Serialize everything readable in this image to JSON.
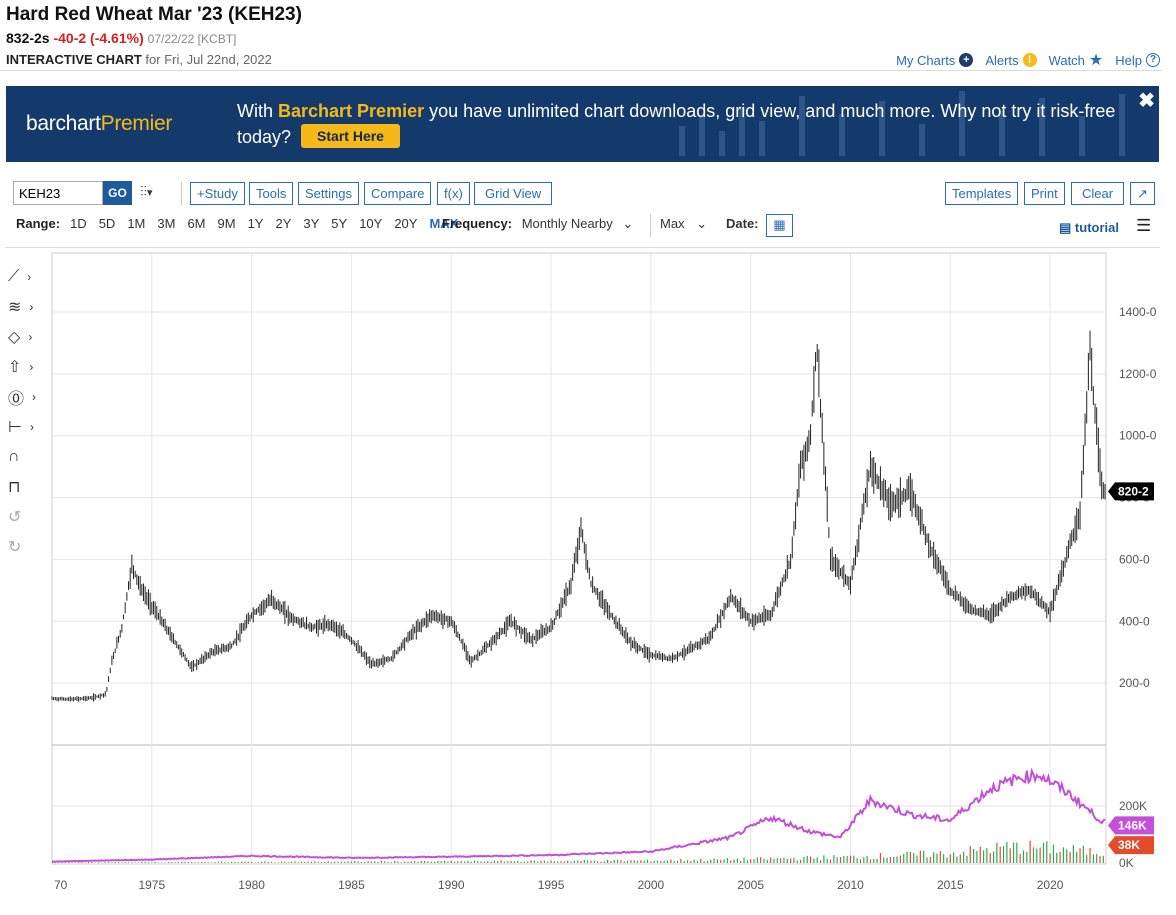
{
  "header": {
    "title": "Hard Red Wheat Mar '23 (KEH23)",
    "last": "832-2s",
    "change": "-40-2 (-4.61%)",
    "meta": "07/22/22 [KCBT]",
    "sub_bold": "INTERACTIVE CHART",
    "sub_rest": "for Fri, Jul 22nd, 2022"
  },
  "links": {
    "my_charts": "My Charts",
    "alerts": "Alerts",
    "watch": "Watch",
    "help": "Help"
  },
  "banner": {
    "brand_a": "barchart",
    "brand_b": "Premier",
    "text_a": "With ",
    "text_hl": "Barchart Premier",
    "text_b": " you have unlimited chart downloads, grid view, and much more. Why not try it risk-free today?",
    "cta": "Start Here",
    "close": "✖"
  },
  "toolbar": {
    "symbol": "KEH23",
    "go": "GO",
    "study": "+Study",
    "tools": "Tools",
    "settings": "Settings",
    "compare": "Compare",
    "fx": "f(x)",
    "grid": "Grid View",
    "templates": "Templates",
    "print": "Print",
    "clear": "Clear"
  },
  "range": {
    "label": "Range:",
    "options": [
      "1D",
      "5D",
      "1M",
      "3M",
      "6M",
      "9M",
      "1Y",
      "2Y",
      "3Y",
      "5Y",
      "10Y",
      "20Y",
      "MAX"
    ],
    "active": "MAX",
    "freq_label": "Frequency:",
    "freq_value": "Monthly Nearby",
    "agg_value": "Max",
    "date_label": "Date:",
    "tutorial": "tutorial"
  },
  "chart_data": {
    "type": "line",
    "price_axis": {
      "ticks": [
        "1400-0",
        "1200-0",
        "1000-0",
        "800-0",
        "600-0",
        "400-0",
        "200-0"
      ],
      "values": [
        1400,
        1200,
        1000,
        800,
        600,
        400,
        200
      ],
      "last_label": "820-2",
      "last_value": 820
    },
    "x_axis": {
      "ticks": [
        "70",
        "1975",
        "1980",
        "1985",
        "1990",
        "1995",
        "2000",
        "2005",
        "2010",
        "2015",
        "2020"
      ]
    },
    "price_series": {
      "name": "",
      "x": [
        1970,
        1971,
        1972,
        1972.7,
        1973,
        1973.5,
        1974,
        1974.5,
        1975,
        1976,
        1977,
        1978,
        1979,
        1980,
        1981,
        1982,
        1983,
        1984,
        1985,
        1986,
        1987,
        1988,
        1989,
        1990,
        1991,
        1992,
        1993,
        1994,
        1995,
        1996,
        1996.5,
        1997,
        1998,
        1999,
        2000,
        2001,
        2002,
        2003,
        2004,
        2005,
        2006,
        2007,
        2007.5,
        2008,
        2008.3,
        2009,
        2010,
        2011,
        2012,
        2013,
        2014,
        2015,
        2016,
        2017,
        2018,
        2019,
        2020,
        2021,
        2021.5,
        2022,
        2022.2,
        2022.6
      ],
      "y": [
        150,
        148,
        152,
        165,
        270,
        380,
        580,
        500,
        450,
        350,
        250,
        300,
        320,
        420,
        470,
        410,
        380,
        390,
        340,
        260,
        280,
        360,
        420,
        400,
        270,
        330,
        400,
        340,
        380,
        520,
        700,
        520,
        420,
        330,
        290,
        280,
        310,
        350,
        480,
        400,
        420,
        600,
        900,
        1000,
        1300,
        600,
        520,
        900,
        780,
        820,
        640,
        500,
        440,
        420,
        480,
        500,
        430,
        650,
        750,
        1280,
        1100,
        820
      ]
    },
    "volume_axis": {
      "ticks": [
        "200K",
        "0K"
      ],
      "values": [
        200000,
        0
      ]
    },
    "open_interest": {
      "name": "",
      "last_label": "146K",
      "last_value": 146000,
      "x": [
        1970,
        1975,
        1980,
        1985,
        1990,
        1995,
        2000,
        2004,
        2006,
        2008,
        2009.5,
        2011,
        2013,
        2015,
        2017,
        2018.5,
        2019.5,
        2021,
        2022.6
      ],
      "y": [
        5000,
        12000,
        25000,
        18000,
        22000,
        28000,
        40000,
        90000,
        160000,
        110000,
        90000,
        220000,
        170000,
        150000,
        260000,
        300000,
        310000,
        240000,
        146000
      ]
    },
    "volume": {
      "last_label": "38K",
      "last_value": 38000,
      "x": [
        1970,
        1980,
        1990,
        2000,
        2005,
        2010,
        2015,
        2018,
        2020,
        2022.6
      ],
      "y": [
        2000,
        4000,
        6000,
        9000,
        14000,
        22000,
        35000,
        60000,
        55000,
        38000
      ]
    },
    "colors": {
      "price": "#222222",
      "oi": "#c44fd8",
      "volume_up": "#2fa84f",
      "volume_down": "#e24b2b",
      "last_price_bg": "#000000",
      "oi_badge": "#c44fd8",
      "vol_badge": "#e24b2b"
    }
  }
}
